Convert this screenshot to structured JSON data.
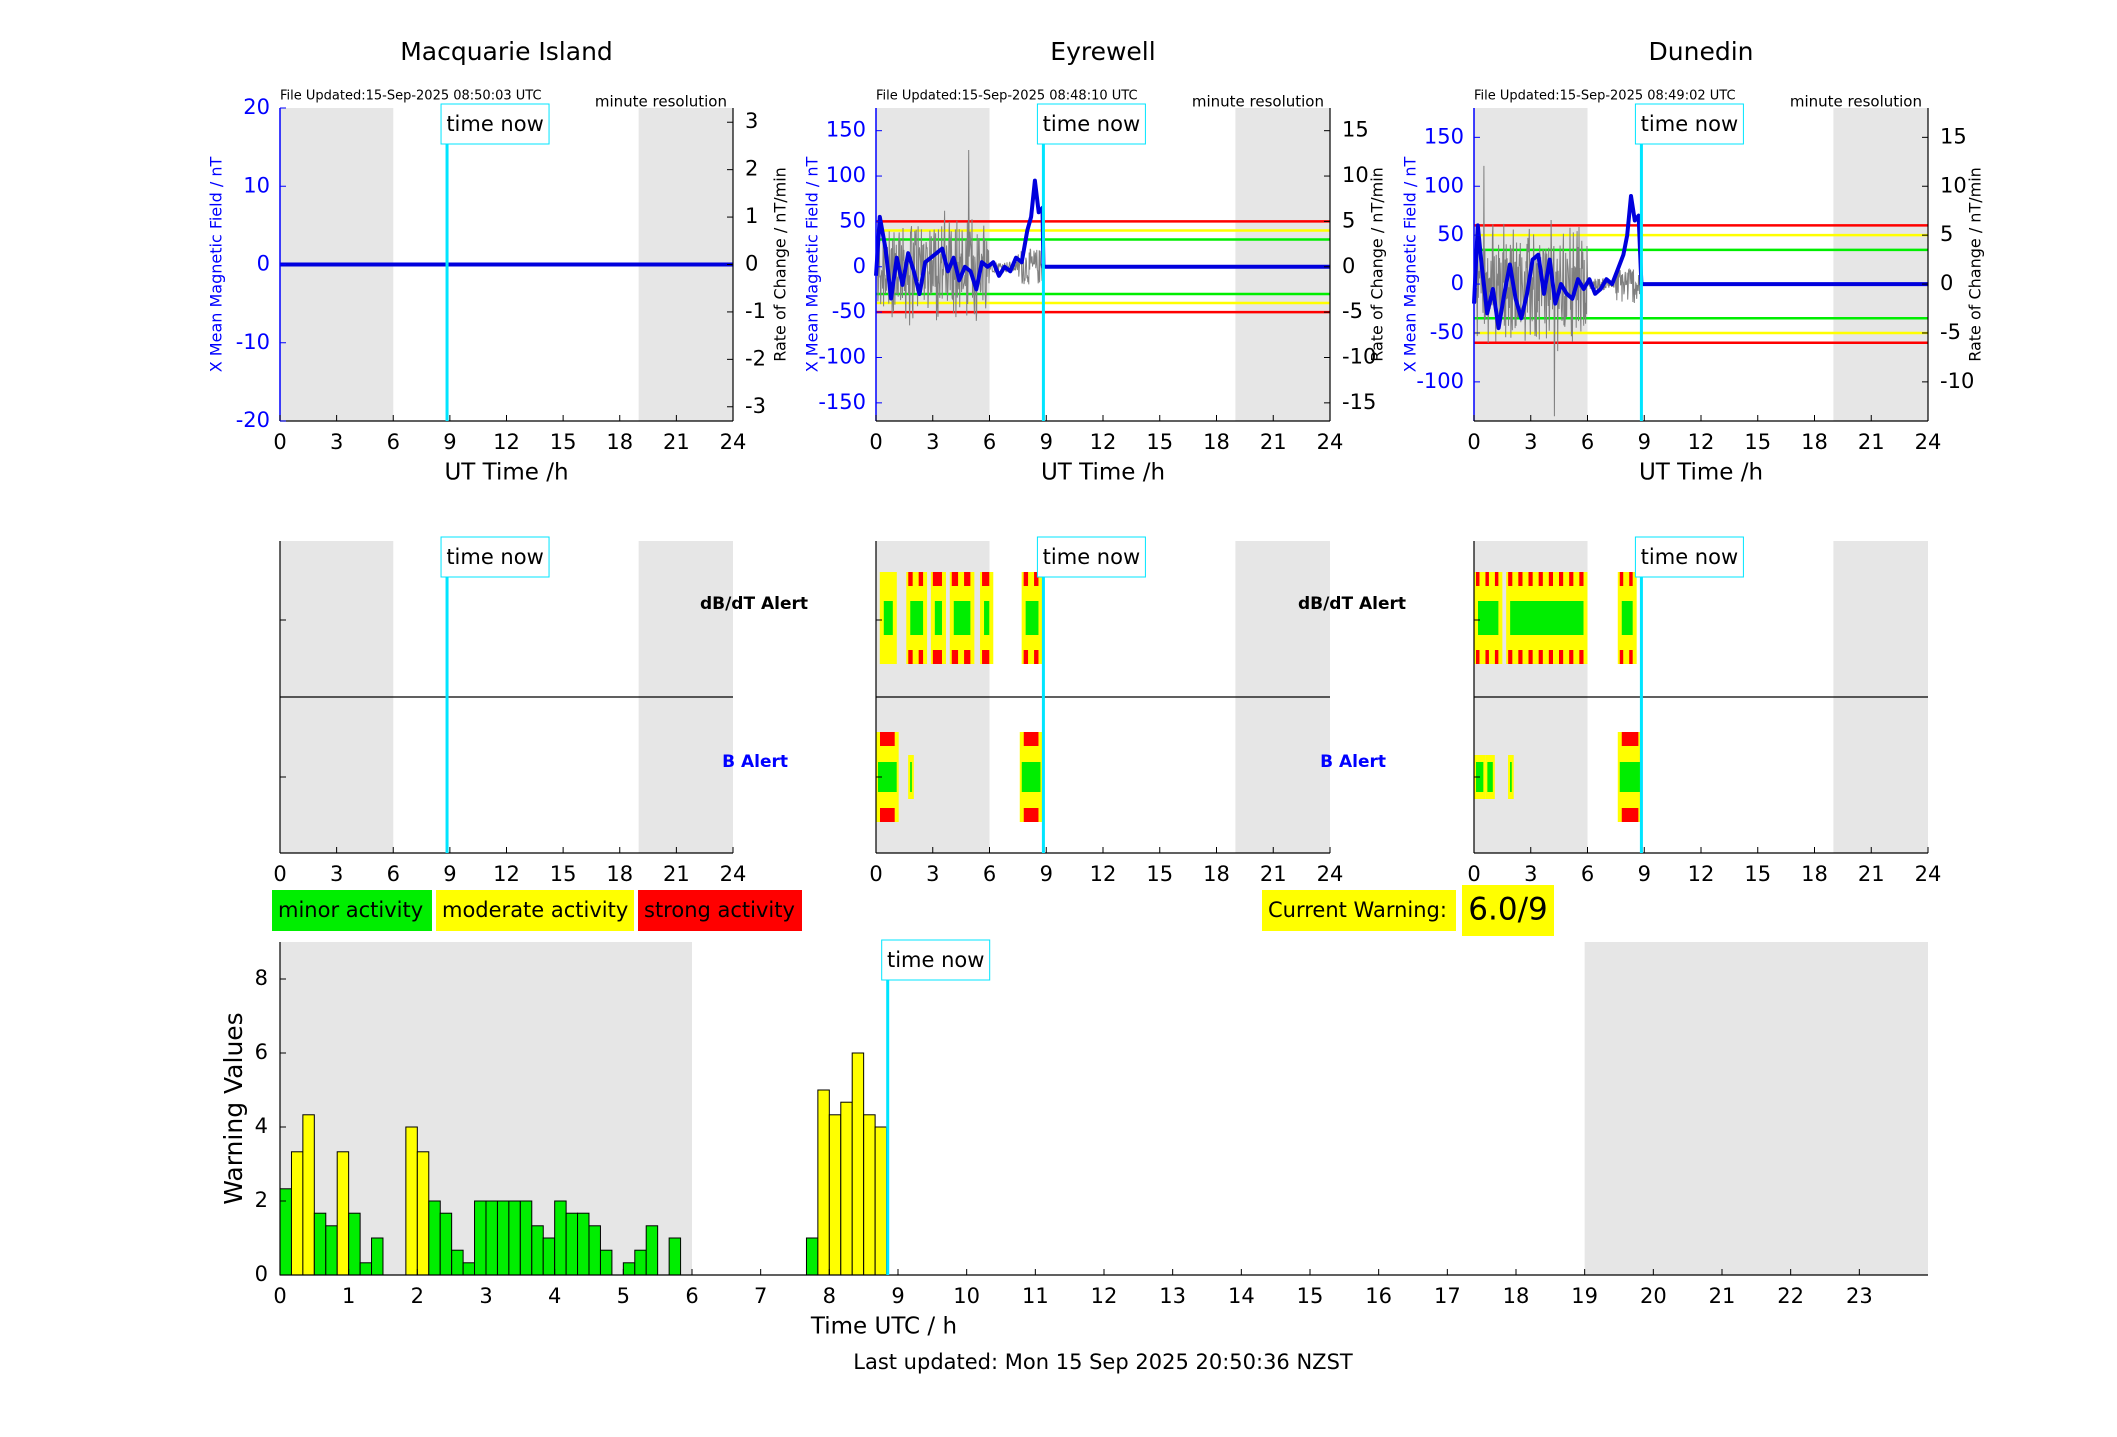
{
  "colors": {
    "night_shading": "#e6e6e6",
    "time_now_line": "#00e5ff",
    "mag_line": "#0000dd",
    "rate_line": "#7f7f7f",
    "minor": "#00ee00",
    "moderate": "#ffff00",
    "strong": "#ff0000",
    "axis_blue": "#0000ff"
  },
  "time_now_label": "time now",
  "time_now_hour": 8.85,
  "stations": [
    {
      "name": "Macquarie Island",
      "file_updated": "File Updated:15-Sep-2025 08:50:03 UTC",
      "resolution": "minute resolution",
      "ylabel_left": "X Mean Magnetic Field / nT",
      "ylabel_right": "Rate of Change / nT/min",
      "left_ticks": [
        20,
        10,
        0,
        -10,
        -20
      ],
      "right_ticks": [
        3,
        2,
        1,
        0,
        -1,
        -2,
        -3
      ],
      "has_data": false
    },
    {
      "name": "Eyrewell",
      "file_updated": "File Updated:15-Sep-2025 08:48:10 UTC",
      "resolution": "minute resolution",
      "ylabel_left": "X Mean Magnetic Field / nT",
      "ylabel_right": "Rate of Change / nT/min",
      "left_ticks": [
        150,
        100,
        50,
        0,
        -50,
        -100,
        -150
      ],
      "right_ticks": [
        15,
        10,
        5,
        0,
        -5,
        -10,
        -15
      ],
      "has_data": true
    },
    {
      "name": "Dunedin",
      "file_updated": "File Updated:15-Sep-2025 08:49:02 UTC",
      "resolution": "minute resolution",
      "ylabel_left": "X Mean Magnetic Field / nT",
      "ylabel_right": "Rate of Change / nT/min",
      "left_ticks": [
        150,
        100,
        50,
        0,
        -50,
        -100
      ],
      "right_ticks": [
        15,
        10,
        5,
        0,
        -5,
        -10
      ],
      "has_data": true
    }
  ],
  "top_xlabel": "UT Time /h",
  "hour_ticks_3h": [
    "0",
    "3",
    "6",
    "9",
    "12",
    "15",
    "18",
    "21",
    "24"
  ],
  "alert_labels": {
    "dbdt": "dB/dT Alert",
    "b": "B Alert"
  },
  "legend": {
    "minor": "minor activity",
    "moderate": "moderate activity",
    "strong": "strong activity"
  },
  "current_warning": {
    "label": "Current Warning:",
    "value": "6.0/9"
  },
  "bottom_xlabel": "Time UTC / h",
  "bottom_ylabel": "Warning Values",
  "last_updated": "Last updated: Mon 15 Sep 2025 20:50:36 NZST",
  "chart_data": [
    {
      "type": "line",
      "title": "Macquarie Island",
      "xlabel": "UT Time /h",
      "ylabel": "X Mean Magnetic Field / nT",
      "y2label": "Rate of Change / nT/min",
      "xlim": [
        0,
        24
      ],
      "ylim": [
        -20,
        20
      ],
      "y2lim": [
        -3.3,
        3.3
      ],
      "series": [
        {
          "x": [
            0,
            24
          ],
          "values": [
            0,
            0
          ]
        }
      ]
    },
    {
      "type": "line",
      "title": "Eyrewell",
      "xlabel": "UT Time /h",
      "ylabel": "X Mean Magnetic Field / nT",
      "y2label": "Rate of Change / nT/min",
      "xlim": [
        0,
        24
      ],
      "ylim": [
        -170,
        175
      ],
      "y2lim": [
        -17,
        17.5
      ],
      "thresholds_nT": {
        "minor": [
          30,
          -30
        ],
        "moderate": [
          40,
          -40
        ],
        "strong": [
          50,
          -50
        ]
      },
      "series": [
        {
          "x": [
            0,
            0.2,
            0.5,
            0.8,
            1.1,
            1.4,
            1.7,
            2.0,
            2.3,
            2.6,
            2.9,
            3.2,
            3.5,
            3.8,
            4.1,
            4.4,
            4.7,
            5.0,
            5.3,
            5.6,
            5.9,
            6.2,
            6.5,
            6.8,
            7.1,
            7.4,
            7.7,
            8.0,
            8.2,
            8.4,
            8.6,
            8.8,
            8.85,
            24
          ],
          "values": [
            -10,
            55,
            20,
            -35,
            10,
            -20,
            15,
            -5,
            -30,
            5,
            10,
            15,
            20,
            -5,
            10,
            -15,
            0,
            -5,
            -25,
            5,
            0,
            5,
            -10,
            0,
            -5,
            10,
            5,
            40,
            55,
            95,
            60,
            65,
            0,
            0
          ]
        }
      ]
    },
    {
      "type": "line",
      "title": "Dunedin",
      "xlabel": "UT Time /h",
      "ylabel": "X Mean Magnetic Field / nT",
      "y2label": "Rate of Change / nT/min",
      "xlim": [
        0,
        24
      ],
      "ylim": [
        -140,
        180
      ],
      "y2lim": [
        -14,
        18
      ],
      "thresholds_nT": {
        "minor": [
          35,
          -35
        ],
        "moderate": [
          50,
          -50
        ],
        "strong": [
          60,
          -60
        ]
      },
      "series": [
        {
          "x": [
            0,
            0.2,
            0.4,
            0.7,
            1.0,
            1.3,
            1.6,
            1.9,
            2.2,
            2.5,
            2.8,
            3.1,
            3.4,
            3.7,
            4.0,
            4.3,
            4.6,
            4.9,
            5.2,
            5.5,
            5.8,
            6.1,
            6.4,
            6.7,
            7.0,
            7.3,
            7.6,
            7.9,
            8.1,
            8.3,
            8.5,
            8.7,
            8.85,
            24
          ],
          "values": [
            -20,
            60,
            20,
            -30,
            -5,
            -45,
            -10,
            20,
            -15,
            -35,
            -10,
            25,
            30,
            -10,
            25,
            -20,
            0,
            -10,
            -15,
            5,
            -5,
            5,
            -10,
            -5,
            5,
            0,
            15,
            30,
            50,
            90,
            65,
            70,
            0,
            0
          ]
        }
      ]
    },
    {
      "type": "bar",
      "xlabel": "Time UTC / h",
      "ylabel": "Warning Values",
      "xlim": [
        0,
        24
      ],
      "ylim": [
        0,
        9
      ],
      "x_ticks": [
        "0",
        "1",
        "2",
        "3",
        "4",
        "5",
        "6",
        "7",
        "8",
        "9",
        "10",
        "11",
        "12",
        "13",
        "14",
        "15",
        "16",
        "17",
        "18",
        "19",
        "20",
        "21",
        "22",
        "23"
      ],
      "y_ticks": [
        "0",
        "2",
        "4",
        "6",
        "8"
      ],
      "bar_width_h": 0.1667,
      "bars_start_h": [
        0,
        0.167,
        0.333,
        0.5,
        0.667,
        0.833,
        1.0,
        1.167,
        1.333,
        1.833,
        2.0,
        2.167,
        2.333,
        2.5,
        2.667,
        2.833,
        3.0,
        3.167,
        3.333,
        3.5,
        3.667,
        3.833,
        4.0,
        4.167,
        4.333,
        4.5,
        4.667,
        5.0,
        5.167,
        5.333,
        5.667,
        7.667,
        7.833,
        8.0,
        8.167,
        8.333,
        8.5,
        8.667
      ],
      "values": [
        2.33,
        3.33,
        4.33,
        1.67,
        1.33,
        3.33,
        1.67,
        0.33,
        1.0,
        4.0,
        3.33,
        2.0,
        1.67,
        0.67,
        0.33,
        2.0,
        2.0,
        2.0,
        2.0,
        2.0,
        1.33,
        1.0,
        2.0,
        1.67,
        1.67,
        1.33,
        0.67,
        0.33,
        0.67,
        1.33,
        1.0,
        1.0,
        5.0,
        4.33,
        4.67,
        6.0,
        4.33,
        4.0
      ]
    }
  ]
}
